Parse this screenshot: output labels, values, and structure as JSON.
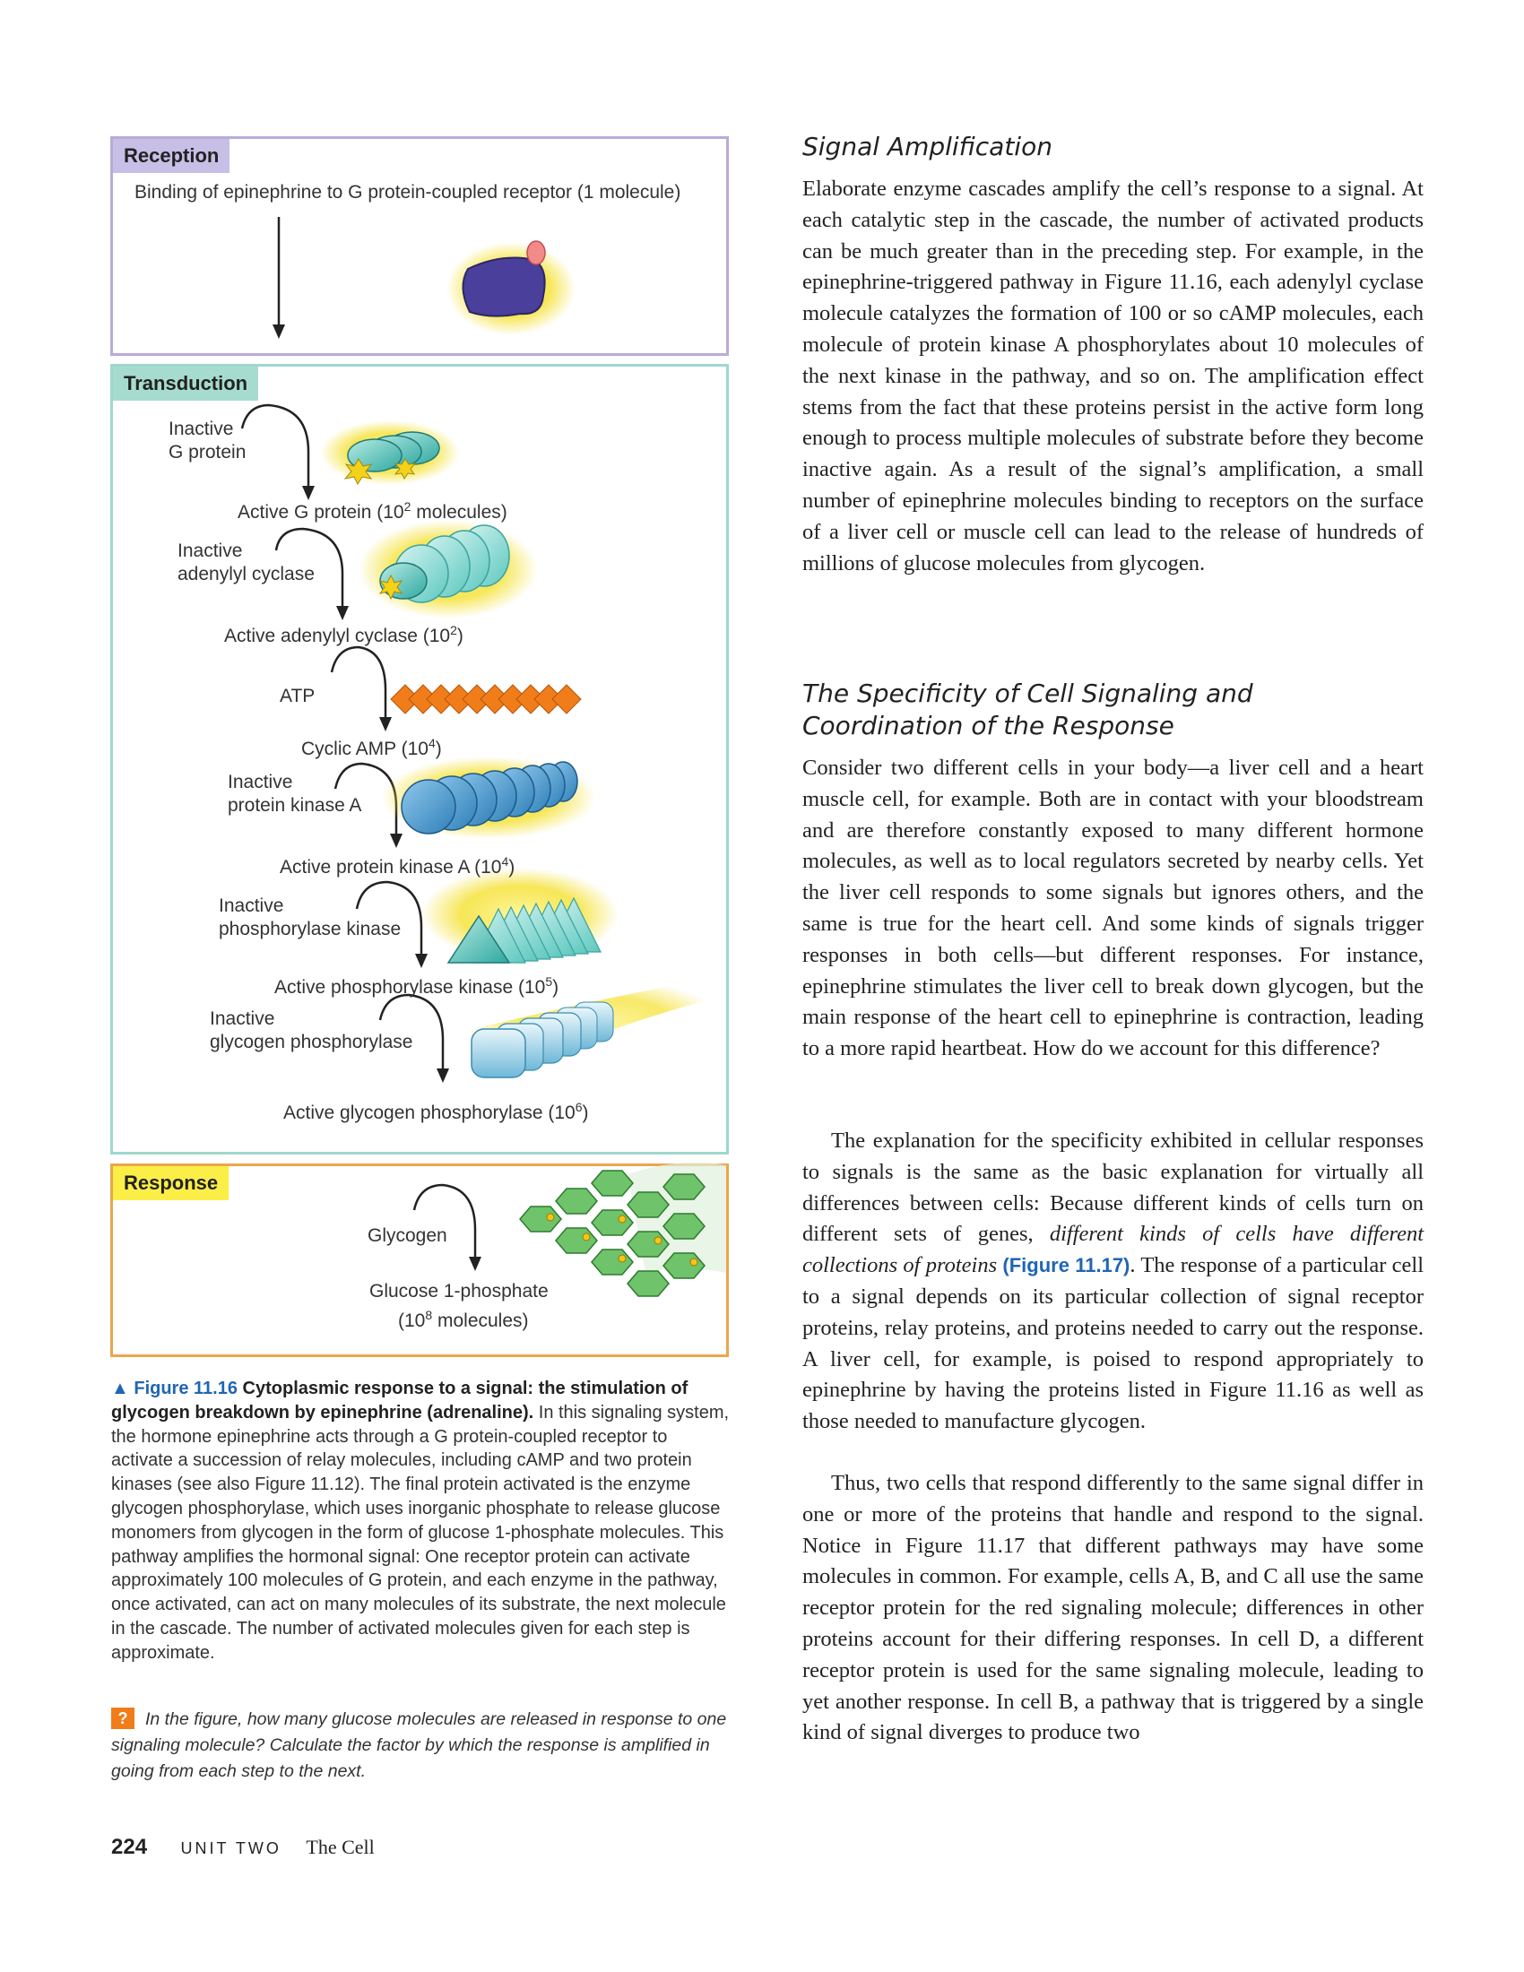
{
  "figure": {
    "reception": {
      "tag": "Reception",
      "label": "Binding of epinephrine to G protein-coupled receptor (1 molecule)"
    },
    "transduction": {
      "tag": "Transduction",
      "steps": [
        {
          "inactive_line1": "Inactive",
          "inactive_line2": "G protein",
          "active": "Active G protein (10",
          "active_exp": "2",
          "active_end": " molecules)"
        },
        {
          "inactive_line1": "Inactive",
          "inactive_line2": "adenylyl cyclase",
          "active": "Active adenylyl cyclase (10",
          "active_exp": "2",
          "active_end": ")"
        },
        {
          "inactive_line1": "ATP",
          "inactive_line2": "",
          "active": "Cyclic AMP (10",
          "active_exp": "4",
          "active_end": ")"
        },
        {
          "inactive_line1": "Inactive",
          "inactive_line2": "protein kinase A",
          "active": "Active protein kinase A (10",
          "active_exp": "4",
          "active_end": ")"
        },
        {
          "inactive_line1": "Inactive",
          "inactive_line2": "phosphorylase kinase",
          "active": "Active phosphorylase kinase (10",
          "active_exp": "5",
          "active_end": ")"
        },
        {
          "inactive_line1": "Inactive",
          "inactive_line2": "glycogen phosphorylase",
          "active": "Active glycogen phosphorylase (10",
          "active_exp": "6",
          "active_end": ")"
        }
      ]
    },
    "response": {
      "tag": "Response",
      "input": "Glycogen",
      "output_line1": "Glucose 1-phosphate",
      "output_line2": "(10",
      "output_exp": "8",
      "output_end": " molecules)"
    },
    "colors": {
      "reception_border": "#b9abd7",
      "transduction_border": "#9ed8cc",
      "response_border": "#eaa64d",
      "glow": "#f5e23a",
      "protein_teal": "#3fb7b0",
      "camp_orange": "#f07d1a",
      "pka_blue": "#3d8fc8",
      "glycogen_green": "#6fc36a"
    }
  },
  "caption": {
    "label": "▲ Figure 11.16",
    "title": "Cytoplasmic response to a signal: the stimulation of glycogen breakdown by epinephrine (adrenaline).",
    "body": "In this signaling system, the hormone epinephrine acts through a G protein-coupled receptor to activate a succession of relay molecules, including cAMP and two protein kinases (see also Figure 11.12). The final protein activated is the enzyme glycogen phosphorylase, which uses inorganic phosphate to release glucose monomers from glycogen in the form of glucose 1-phosphate molecules. This pathway amplifies the hormonal signal: One receptor protein can activate approximately 100 molecules of G protein, and each enzyme in the pathway, once activated, can act on many molecules of its substrate, the next molecule in the cascade. The number of activated molecules given for each step is approximate.",
    "question_badge": "?",
    "question": "In the figure, how many glucose molecules are released in response to one signaling molecule? Calculate the factor by which the response is amplified in going from each step to the next."
  },
  "footer": {
    "page_number": "224",
    "unit": "UNIT TWO",
    "section": "The Cell"
  },
  "article": {
    "heading1": "Signal Amplification",
    "para1": "Elaborate enzyme cascades amplify the cell’s response to a signal. At each catalytic step in the cascade, the number of activated products can be much greater than in the preceding step. For example, in the epinephrine-triggered pathway in Figure 11.16, each adenylyl cyclase molecule catalyzes the formation of 100 or so cAMP molecules, each molecule of protein kinase A phosphorylates about 10 molecules of the next kinase in the pathway, and so on. The amplification effect stems from the fact that these proteins persist in the active form long enough to process multiple molecules of substrate before they become inactive again. As a result of the signal’s amplification, a small number of epinephrine molecules binding to receptors on the surface of a liver cell or muscle cell can lead to the release of hundreds of millions of glucose molecules from glycogen.",
    "heading2": "The Specificity of Cell Signaling and Coordination of the Response",
    "para2": "Consider two different cells in your body—a liver cell and a heart muscle cell, for example. Both are in contact with your bloodstream and are therefore constantly exposed to many different hormone molecules, as well as to local regulators secreted by nearby cells. Yet the liver cell responds to some signals but ignores others, and the same is true for the heart cell. And some kinds of signals trigger responses in both cells—but different responses. For instance, epinephrine stimulates the liver cell to break down glycogen, but the main response of the heart cell to epinephrine is contraction, leading to a more rapid heartbeat. How do we account for this difference?",
    "para3_start": "The explanation for the specificity exhibited in cellular responses to signals is the same as the basic explanation for virtually all differences between cells: Because different kinds of cells turn on different sets of genes,",
    "para3_em": "different kinds of cells have different collections of proteins",
    "para3_ref": "(Figure 11.17)",
    "para3_end": ". The response of a particular cell to a signal depends on its particular collection of signal receptor proteins, relay proteins, and proteins needed to carry out the response. A liver cell, for example, is poised to respond appropriately to epinephrine by having the proteins listed in Figure 11.16 as well as those needed to manufacture glycogen.",
    "para4": "Thus, two cells that respond differently to the same signal differ in one or more of the proteins that handle and respond to the signal. Notice in Figure 11.17 that different pathways may have some molecules in common. For example, cells A, B, and C all use the same receptor protein for the red signaling molecule; differences in other proteins account for their differing responses. In cell D, a different receptor protein is used for the same signaling molecule, leading to yet another response. In cell B, a pathway that is triggered by a single kind of signal diverges to produce two"
  }
}
